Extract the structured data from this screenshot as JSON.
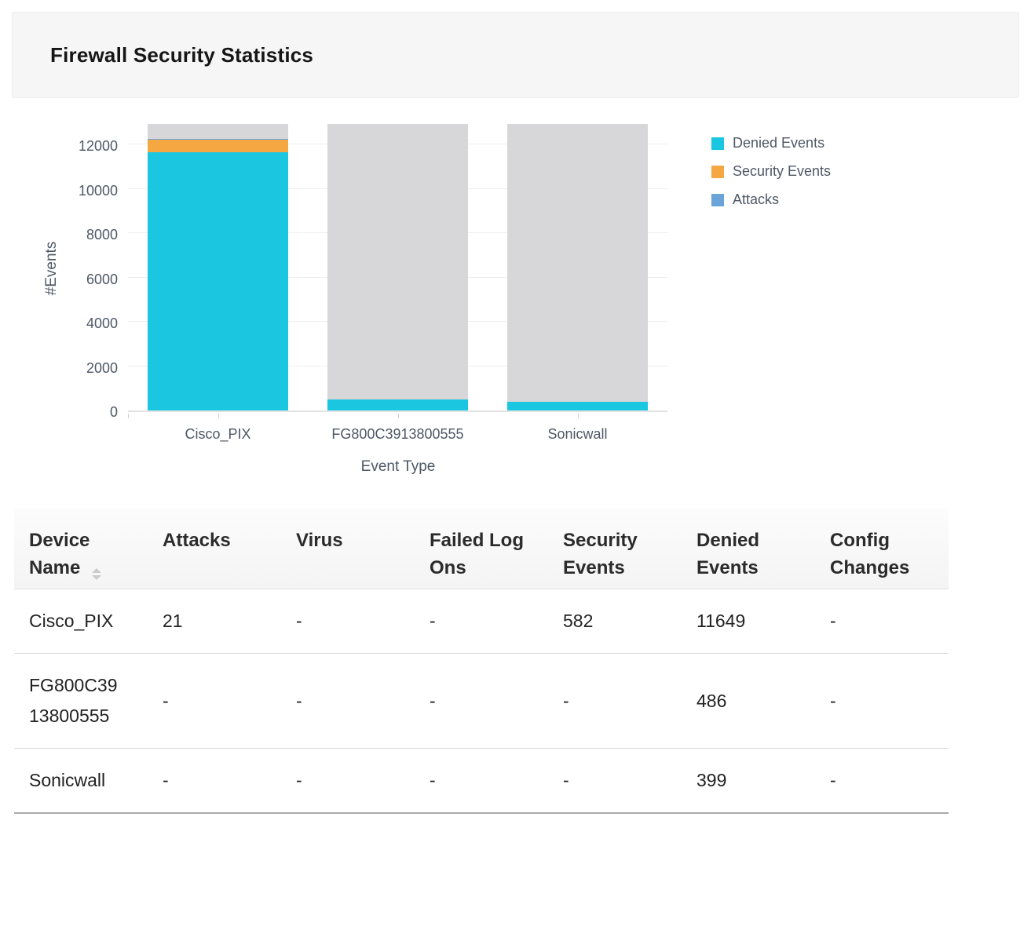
{
  "header": {
    "title": "Firewall Security Statistics"
  },
  "chart_data": {
    "type": "bar",
    "stacked": true,
    "title": "",
    "xlabel": "Event Type",
    "ylabel": "#Events",
    "categories": [
      "Cisco_PIX",
      "FG800C3913800555",
      "Sonicwall"
    ],
    "series": [
      {
        "name": "Denied Events",
        "color": "#1ac6e0",
        "values": [
          11649,
          486,
          399
        ]
      },
      {
        "name": "Security Events",
        "color": "#f5a742",
        "values": [
          582,
          0,
          0
        ]
      },
      {
        "name": "Attacks",
        "color": "#6aa4d8",
        "values": [
          21,
          0,
          0
        ]
      }
    ],
    "background_bar_color": "#d7d7d9",
    "ylim": [
      0,
      13000
    ],
    "yticks": [
      0,
      2000,
      4000,
      6000,
      8000,
      10000,
      12000
    ],
    "grid": true,
    "legend_position": "right"
  },
  "table": {
    "columns": [
      "Device Name",
      "Attacks",
      "Virus",
      "Failed Log Ons",
      "Security Events",
      "Denied Events",
      "Config Changes"
    ],
    "rows": [
      {
        "cells": [
          "Cisco_PIX",
          "21",
          "-",
          "-",
          "582",
          "11649",
          "-"
        ]
      },
      {
        "cells": [
          "FG800C3913800555",
          "-",
          "-",
          "-",
          "-",
          "486",
          "-"
        ]
      },
      {
        "cells": [
          "Sonicwall",
          "-",
          "-",
          "-",
          "-",
          "399",
          "-"
        ]
      }
    ]
  }
}
